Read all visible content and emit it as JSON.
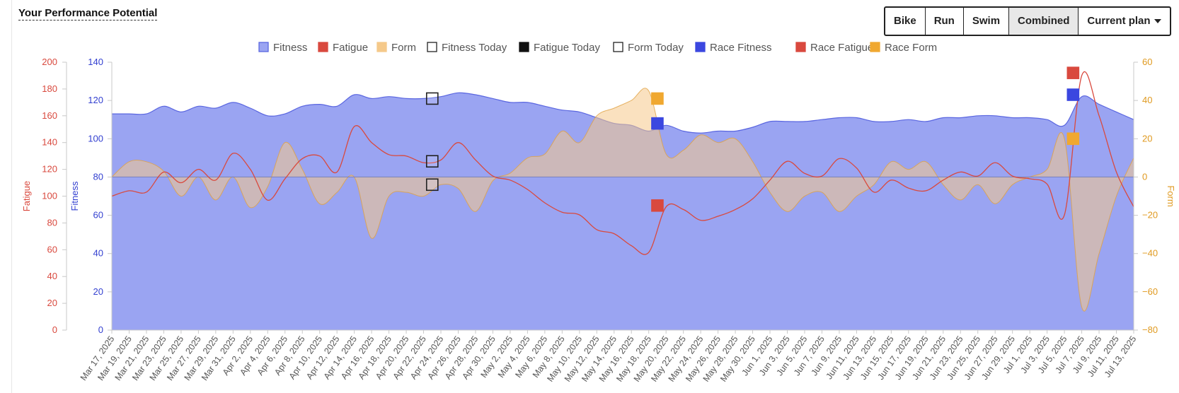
{
  "page_title": "Your Performance Potential",
  "sport_buttons": [
    {
      "label": "Bike",
      "active": false
    },
    {
      "label": "Run",
      "active": false
    },
    {
      "label": "Swim",
      "active": false
    },
    {
      "label": "Combined",
      "active": true
    }
  ],
  "plan_dropdown": {
    "label": "Current plan"
  },
  "colors": {
    "fitness": "#9aa4f2",
    "fitness_line": "#5a66e0",
    "fatigue": "#d9493e",
    "form": "#f5c98a",
    "form_line": "#e0a040",
    "race_fitness": "#3b47e0",
    "race_fatigue": "#d9493e",
    "race_form": "#f0a830",
    "fitness_axis": "#3340d0",
    "fatigue_axis": "#d9493e",
    "form_axis": "#e09a20"
  },
  "chart_data": {
    "type": "area",
    "legend": [
      "Fitness",
      "Fatigue",
      "Form",
      "Fitness Today",
      "Fatigue Today",
      "Form Today",
      "Race Fitness",
      "Race Fatigue",
      "Race Form"
    ],
    "axes": {
      "fatigue": {
        "label": "Fatigue",
        "ticks": [
          "200",
          "180",
          "160",
          "140",
          "120",
          "100",
          "80",
          "60",
          "40",
          "20",
          "0"
        ],
        "range": [
          0,
          200
        ]
      },
      "fitness": {
        "label": "Fitness",
        "ticks": [
          "140",
          "120",
          "100",
          "80",
          "60",
          "40",
          "20",
          "0"
        ],
        "range": [
          0,
          140
        ]
      },
      "form": {
        "label": "Form",
        "ticks": [
          "60",
          "40",
          "20",
          "0",
          "−20",
          "−40",
          "−60",
          "−80"
        ],
        "range": [
          -80,
          60
        ]
      }
    },
    "x_tick_labels": [
      "Mar 17, 2025",
      "Mar 19, 2025",
      "Mar 21, 2025",
      "Mar 23, 2025",
      "Mar 25, 2025",
      "Mar 27, 2025",
      "Mar 29, 2025",
      "Mar 31, 2025",
      "Apr 2, 2025",
      "Apr 4, 2025",
      "Apr 6, 2025",
      "Apr 8, 2025",
      "Apr 10, 2025",
      "Apr 12, 2025",
      "Apr 14, 2025",
      "Apr 16, 2025",
      "Apr 18, 2025",
      "Apr 20, 2025",
      "Apr 22, 2025",
      "Apr 24, 2025",
      "Apr 26, 2025",
      "Apr 28, 2025",
      "Apr 30, 2025",
      "May 2, 2025",
      "May 4, 2025",
      "May 6, 2025",
      "May 8, 2025",
      "May 10, 2025",
      "May 12, 2025",
      "May 14, 2025",
      "May 16, 2025",
      "May 18, 2025",
      "May 20, 2025",
      "May 22, 2025",
      "May 24, 2025",
      "May 26, 2025",
      "May 28, 2025",
      "May 30, 2025",
      "Jun 1, 2025",
      "Jun 3, 2025",
      "Jun 5, 2025",
      "Jun 7, 2025",
      "Jun 9, 2025",
      "Jun 11, 2025",
      "Jun 13, 2025",
      "Jun 15, 2025",
      "Jun 17, 2025",
      "Jun 19, 2025",
      "Jun 21, 2025",
      "Jun 23, 2025",
      "Jun 25, 2025",
      "Jun 27, 2025",
      "Jun 29, 2025",
      "Jul 1, 2025",
      "Jul 3, 2025",
      "Jul 5, 2025",
      "Jul 7, 2025",
      "Jul 9, 2025",
      "Jul 11, 2025",
      "Jul 13, 2025"
    ],
    "fitness_series": [
      [
        "Mar 17, 2025",
        113
      ],
      [
        "Mar 19, 2025",
        113
      ],
      [
        "Mar 21, 2025",
        113
      ],
      [
        "Mar 23, 2025",
        117
      ],
      [
        "Mar 25, 2025",
        114
      ],
      [
        "Mar 27, 2025",
        117
      ],
      [
        "Mar 29, 2025",
        116
      ],
      [
        "Mar 31, 2025",
        119
      ],
      [
        "Apr 2, 2025",
        116
      ],
      [
        "Apr 4, 2025",
        112
      ],
      [
        "Apr 6, 2025",
        113
      ],
      [
        "Apr 8, 2025",
        117
      ],
      [
        "Apr 10, 2025",
        118
      ],
      [
        "Apr 12, 2025",
        117
      ],
      [
        "Apr 14, 2025",
        123
      ],
      [
        "Apr 16, 2025",
        121
      ],
      [
        "Apr 18, 2025",
        122
      ],
      [
        "Apr 20, 2025",
        121
      ],
      [
        "Apr 22, 2025",
        121
      ],
      [
        "Apr 24, 2025",
        122
      ],
      [
        "Apr 26, 2025",
        124
      ],
      [
        "Apr 28, 2025",
        123
      ],
      [
        "Apr 30, 2025",
        121
      ],
      [
        "May 2, 2025",
        119
      ],
      [
        "May 4, 2025",
        119
      ],
      [
        "May 6, 2025",
        117
      ],
      [
        "May 8, 2025",
        115
      ],
      [
        "May 10, 2025",
        114
      ],
      [
        "May 12, 2025",
        111
      ],
      [
        "May 14, 2025",
        108
      ],
      [
        "May 16, 2025",
        107
      ],
      [
        "May 18, 2025",
        104
      ],
      [
        "May 20, 2025",
        107
      ],
      [
        "May 22, 2025",
        104
      ],
      [
        "May 24, 2025",
        103
      ],
      [
        "May 26, 2025",
        104
      ],
      [
        "May 28, 2025",
        104
      ],
      [
        "May 30, 2025",
        106
      ],
      [
        "Jun 1, 2025",
        109
      ],
      [
        "Jun 3, 2025",
        109
      ],
      [
        "Jun 5, 2025",
        109
      ],
      [
        "Jun 7, 2025",
        110
      ],
      [
        "Jun 9, 2025",
        111
      ],
      [
        "Jun 11, 2025",
        111
      ],
      [
        "Jun 13, 2025",
        109
      ],
      [
        "Jun 15, 2025",
        109
      ],
      [
        "Jun 17, 2025",
        110
      ],
      [
        "Jun 19, 2025",
        109
      ],
      [
        "Jun 21, 2025",
        111
      ],
      [
        "Jun 23, 2025",
        111
      ],
      [
        "Jun 25, 2025",
        112
      ],
      [
        "Jun 27, 2025",
        112
      ],
      [
        "Jun 29, 2025",
        111
      ],
      [
        "Jul 1, 2025",
        111
      ],
      [
        "Jul 3, 2025",
        110
      ],
      [
        "Jul 5, 2025",
        107
      ],
      [
        "Jul 7, 2025",
        122
      ],
      [
        "Jul 9, 2025",
        118
      ],
      [
        "Jul 11, 2025",
        114
      ],
      [
        "Jul 13, 2025",
        110
      ]
    ],
    "fatigue_series": [
      [
        "Mar 17, 2025",
        100
      ],
      [
        "Mar 19, 2025",
        104
      ],
      [
        "Mar 21, 2025",
        103
      ],
      [
        "Mar 23, 2025",
        118
      ],
      [
        "Mar 25, 2025",
        110
      ],
      [
        "Mar 27, 2025",
        120
      ],
      [
        "Mar 29, 2025",
        112
      ],
      [
        "Mar 31, 2025",
        132
      ],
      [
        "Apr 2, 2025",
        120
      ],
      [
        "Apr 4, 2025",
        97
      ],
      [
        "Apr 6, 2025",
        113
      ],
      [
        "Apr 8, 2025",
        128
      ],
      [
        "Apr 10, 2025",
        130
      ],
      [
        "Apr 12, 2025",
        118
      ],
      [
        "Apr 14, 2025",
        152
      ],
      [
        "Apr 16, 2025",
        140
      ],
      [
        "Apr 18, 2025",
        131
      ],
      [
        "Apr 20, 2025",
        130
      ],
      [
        "Apr 22, 2025",
        125
      ],
      [
        "Apr 24, 2025",
        127
      ],
      [
        "Apr 26, 2025",
        140
      ],
      [
        "Apr 28, 2025",
        127
      ],
      [
        "Apr 30, 2025",
        115
      ],
      [
        "May 2, 2025",
        112
      ],
      [
        "May 4, 2025",
        105
      ],
      [
        "May 6, 2025",
        95
      ],
      [
        "May 8, 2025",
        88
      ],
      [
        "May 10, 2025",
        86
      ],
      [
        "May 12, 2025",
        75
      ],
      [
        "May 14, 2025",
        72
      ],
      [
        "May 16, 2025",
        63
      ],
      [
        "May 18, 2025",
        58
      ],
      [
        "May 20, 2025",
        92
      ],
      [
        "May 22, 2025",
        90
      ],
      [
        "May 24, 2025",
        82
      ],
      [
        "May 26, 2025",
        85
      ],
      [
        "May 28, 2025",
        90
      ],
      [
        "May 30, 2025",
        98
      ],
      [
        "Jun 1, 2025",
        112
      ],
      [
        "Jun 3, 2025",
        126
      ],
      [
        "Jun 5, 2025",
        117
      ],
      [
        "Jun 7, 2025",
        115
      ],
      [
        "Jun 9, 2025",
        128
      ],
      [
        "Jun 11, 2025",
        121
      ],
      [
        "Jun 13, 2025",
        103
      ],
      [
        "Jun 15, 2025",
        112
      ],
      [
        "Jun 17, 2025",
        106
      ],
      [
        "Jun 19, 2025",
        104
      ],
      [
        "Jun 21, 2025",
        112
      ],
      [
        "Jun 23, 2025",
        118
      ],
      [
        "Jun 25, 2025",
        115
      ],
      [
        "Jun 27, 2025",
        125
      ],
      [
        "Jun 29, 2025",
        115
      ],
      [
        "Jul 1, 2025",
        113
      ],
      [
        "Jul 3, 2025",
        109
      ],
      [
        "Jul 5, 2025",
        86
      ],
      [
        "Jul 7, 2025",
        190
      ],
      [
        "Jul 9, 2025",
        160
      ],
      [
        "Jul 11, 2025",
        118
      ],
      [
        "Jul 13, 2025",
        92
      ]
    ],
    "form_series": [
      [
        "Mar 17, 2025",
        0
      ],
      [
        "Mar 19, 2025",
        8
      ],
      [
        "Mar 21, 2025",
        8
      ],
      [
        "Mar 23, 2025",
        3
      ],
      [
        "Mar 25, 2025",
        -10
      ],
      [
        "Mar 27, 2025",
        0
      ],
      [
        "Mar 29, 2025",
        -12
      ],
      [
        "Mar 31, 2025",
        0
      ],
      [
        "Apr 2, 2025",
        -16
      ],
      [
        "Apr 4, 2025",
        -5
      ],
      [
        "Apr 6, 2025",
        18
      ],
      [
        "Apr 8, 2025",
        4
      ],
      [
        "Apr 10, 2025",
        -14
      ],
      [
        "Apr 12, 2025",
        -8
      ],
      [
        "Apr 14, 2025",
        0
      ],
      [
        "Apr 16, 2025",
        -32
      ],
      [
        "Apr 18, 2025",
        -10
      ],
      [
        "Apr 20, 2025",
        -8
      ],
      [
        "Apr 22, 2025",
        -10
      ],
      [
        "Apr 24, 2025",
        -4
      ],
      [
        "Apr 26, 2025",
        -6
      ],
      [
        "Apr 28, 2025",
        -18
      ],
      [
        "Apr 30, 2025",
        -2
      ],
      [
        "May 2, 2025",
        2
      ],
      [
        "May 4, 2025",
        10
      ],
      [
        "May 6, 2025",
        12
      ],
      [
        "May 8, 2025",
        24
      ],
      [
        "May 10, 2025",
        18
      ],
      [
        "May 12, 2025",
        32
      ],
      [
        "May 14, 2025",
        36
      ],
      [
        "May 16, 2025",
        40
      ],
      [
        "May 18, 2025",
        45
      ],
      [
        "May 20, 2025",
        12
      ],
      [
        "May 22, 2025",
        14
      ],
      [
        "May 24, 2025",
        22
      ],
      [
        "May 26, 2025",
        18
      ],
      [
        "May 28, 2025",
        20
      ],
      [
        "May 30, 2025",
        8
      ],
      [
        "Jun 1, 2025",
        -8
      ],
      [
        "Jun 3, 2025",
        -18
      ],
      [
        "Jun 5, 2025",
        -10
      ],
      [
        "Jun 7, 2025",
        -8
      ],
      [
        "Jun 9, 2025",
        -18
      ],
      [
        "Jun 11, 2025",
        -10
      ],
      [
        "Jun 13, 2025",
        -4
      ],
      [
        "Jun 15, 2025",
        8
      ],
      [
        "Jun 17, 2025",
        4
      ],
      [
        "Jun 19, 2025",
        8
      ],
      [
        "Jun 21, 2025",
        -4
      ],
      [
        "Jun 23, 2025",
        -12
      ],
      [
        "Jun 25, 2025",
        -4
      ],
      [
        "Jun 27, 2025",
        -14
      ],
      [
        "Jun 29, 2025",
        -4
      ],
      [
        "Jul 1, 2025",
        0
      ],
      [
        "Jul 3, 2025",
        4
      ],
      [
        "Jul 5, 2025",
        20
      ],
      [
        "Jul 7, 2025",
        -68
      ],
      [
        "Jul 9, 2025",
        -40
      ],
      [
        "Jul 11, 2025",
        -10
      ],
      [
        "Jul 13, 2025",
        10
      ]
    ],
    "markers": {
      "fitness_today": {
        "date": "Apr 23, 2025",
        "fitness": 121
      },
      "fatigue_today": {
        "date": "Apr 23, 2025",
        "fatigue": 126
      },
      "form_today": {
        "date": "Apr 23, 2025",
        "form": -4
      },
      "race_points": [
        {
          "date": "May 19, 2025",
          "fitness": 108,
          "fatigue": 93,
          "form": 41
        },
        {
          "date": "Jul 6, 2025",
          "fitness": 123,
          "fatigue": 192,
          "form": 20
        }
      ]
    },
    "grid": false,
    "legend_position": "top-center"
  }
}
